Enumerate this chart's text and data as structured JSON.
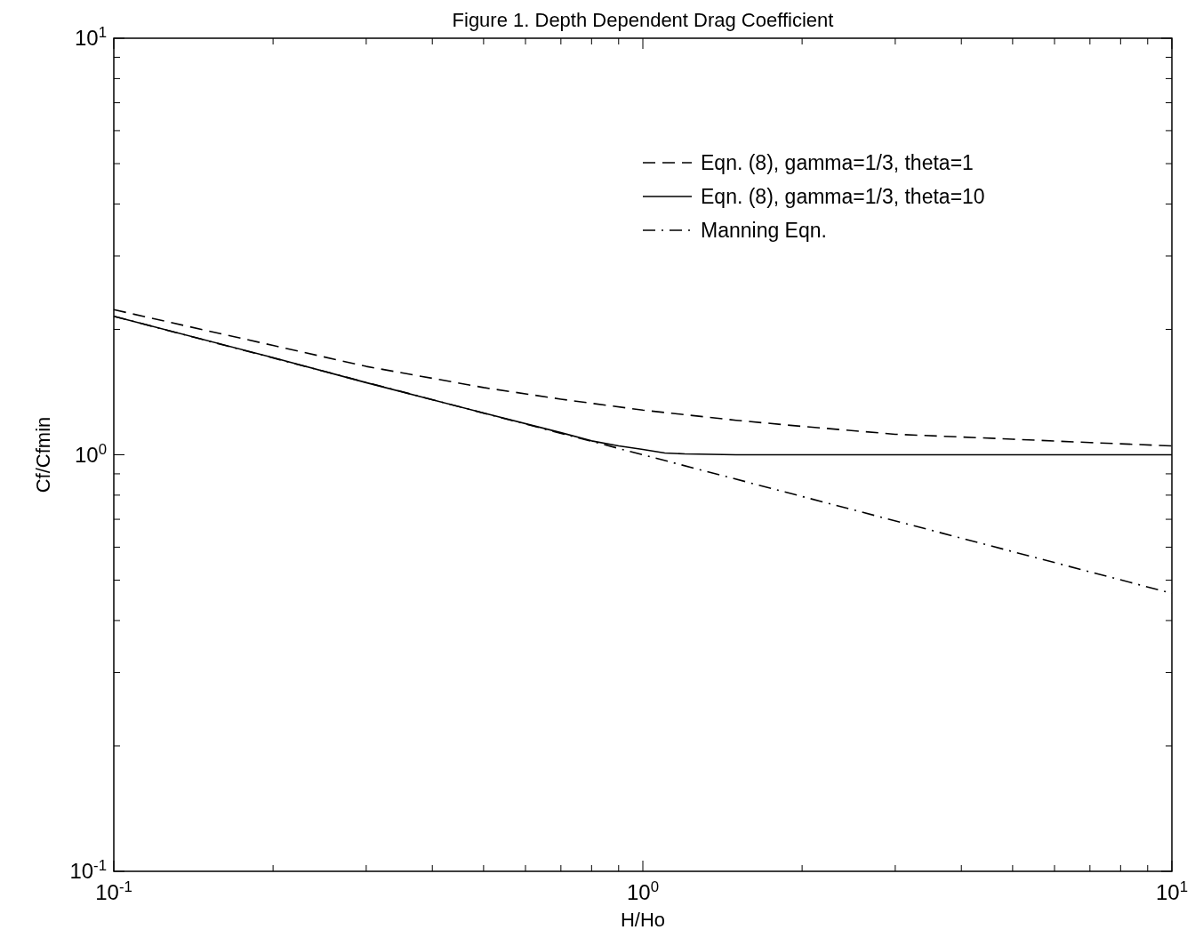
{
  "chart_data": {
    "type": "line",
    "title": "Figure 1.  Depth Dependent Drag Coefficient",
    "xlabel": "H/Ho",
    "ylabel": "Cf/Cfmin",
    "log": "xy",
    "grid": false,
    "legend": "top right",
    "xlim": [
      0.1,
      10
    ],
    "ylim": [
      0.1,
      10
    ],
    "xticks": [
      {
        "value": 0.1,
        "label": "10$^{-1}$"
      },
      {
        "value": 0.2,
        "label": null
      },
      {
        "value": 0.3,
        "label": null
      },
      {
        "value": 0.4,
        "label": null
      },
      {
        "value": 0.5,
        "label": null
      },
      {
        "value": 0.6,
        "label": null
      },
      {
        "value": 0.7,
        "label": null
      },
      {
        "value": 0.8,
        "label": null
      },
      {
        "value": 0.9,
        "label": null
      },
      {
        "value": 1,
        "label": "10$^{0}$"
      },
      {
        "value": 2,
        "label": null
      },
      {
        "value": 3,
        "label": null
      },
      {
        "value": 4,
        "label": null
      },
      {
        "value": 5,
        "label": null
      },
      {
        "value": 6,
        "label": null
      },
      {
        "value": 7,
        "label": null
      },
      {
        "value": 8,
        "label": null
      },
      {
        "value": 9,
        "label": null
      },
      {
        "value": 10,
        "label": "10$^{1}$"
      }
    ],
    "yticks": [
      {
        "value": 0.1,
        "label": "10$^{-1}$"
      },
      {
        "value": 0.2,
        "label": null
      },
      {
        "value": 0.3,
        "label": null
      },
      {
        "value": 0.4,
        "label": null
      },
      {
        "value": 0.5,
        "label": null
      },
      {
        "value": 0.6,
        "label": null
      },
      {
        "value": 0.7,
        "label": null
      },
      {
        "value": 0.8,
        "label": null
      },
      {
        "value": 0.9,
        "label": null
      },
      {
        "value": 1,
        "label": "10$^{0}$"
      },
      {
        "value": 2,
        "label": null
      },
      {
        "value": 3,
        "label": null
      },
      {
        "value": 4,
        "label": null
      },
      {
        "value": 5,
        "label": null
      },
      {
        "value": 6,
        "label": null
      },
      {
        "value": 7,
        "label": null
      },
      {
        "value": 8,
        "label": null
      },
      {
        "value": 9,
        "label": null
      },
      {
        "value": 10,
        "label": "10$^{1}$"
      }
    ],
    "series": [
      {
        "name": "Eqn. (8), gamma=1/3, theta=1",
        "color": "#000000",
        "line_style": "dashed",
        "x": [
          0.1,
          0.2,
          0.3,
          0.5,
          0.7,
          1,
          1.5,
          2,
          3,
          5,
          7,
          10
        ],
        "values": [
          2.23,
          1.83,
          1.63,
          1.45,
          1.36,
          1.28,
          1.21,
          1.17,
          1.12,
          1.09,
          1.07,
          1.05
        ]
      },
      {
        "name": "Eqn. (8), gamma=1/3, theta=10",
        "color": "#000000",
        "line_style": "solid",
        "x": [
          0.1,
          0.2,
          0.3,
          0.5,
          0.7,
          0.8,
          0.9,
          1,
          1.1,
          1.2,
          1.5,
          2,
          5,
          10
        ],
        "values": [
          2.15,
          1.71,
          1.49,
          1.26,
          1.13,
          1.08,
          1.05,
          1.03,
          1.01,
          1.005,
          1.0,
          1.0,
          1.0,
          1.0
        ]
      },
      {
        "name": "Manning Eqn.",
        "color": "#000000",
        "line_style": "dashdot",
        "x": [
          0.1,
          1,
          10
        ],
        "values": [
          2.15,
          1.0,
          0.465
        ]
      }
    ]
  }
}
